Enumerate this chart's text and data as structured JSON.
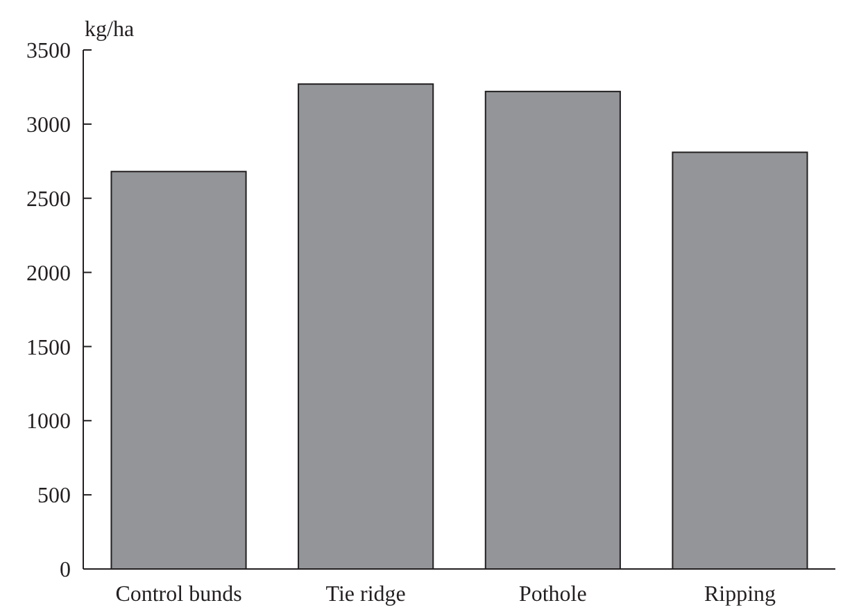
{
  "chart_data": {
    "type": "bar",
    "ylabel": "kg/ha",
    "categories": [
      "Control bunds",
      "Tie ridge",
      "Pothole",
      "Ripping"
    ],
    "values": [
      2680,
      3270,
      3220,
      2810
    ],
    "color": "#939598",
    "ylim": [
      0,
      3500
    ],
    "yticks": [
      0,
      500,
      1000,
      1500,
      2000,
      2500,
      3000,
      3500
    ],
    "grid": false
  }
}
